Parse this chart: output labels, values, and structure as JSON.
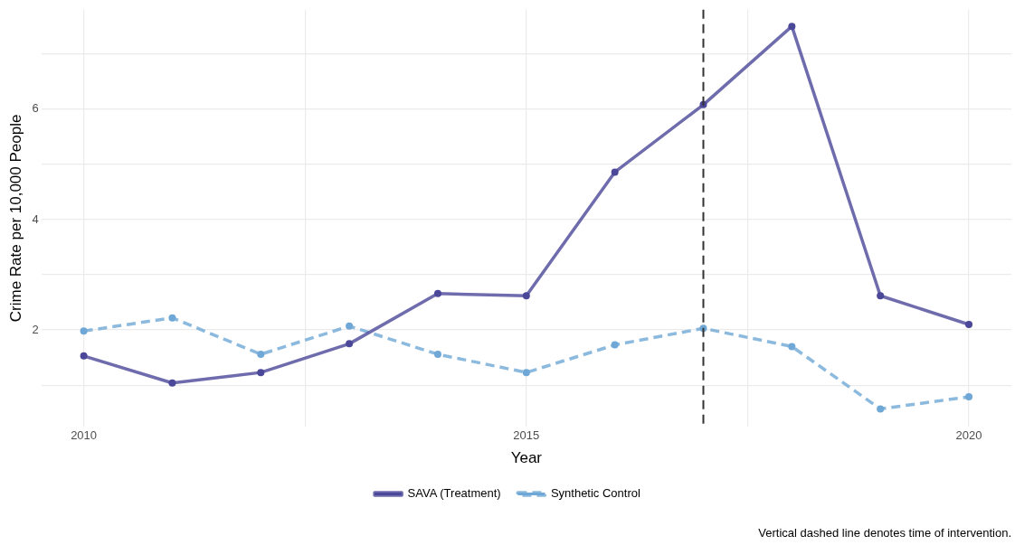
{
  "chart_data": {
    "type": "line",
    "xlabel": "Year",
    "ylabel": "Crime Rate per 10,000 People",
    "x": [
      2010,
      2011,
      2012,
      2013,
      2014,
      2015,
      2016,
      2017,
      2018,
      2019,
      2020
    ],
    "series": [
      {
        "name": "SAVA (Treatment)",
        "color": "#4b4799",
        "line_style": "solid",
        "values": [
          1.53,
          1.04,
          1.23,
          1.75,
          2.66,
          2.62,
          4.86,
          6.08,
          7.5,
          2.62,
          2.1
        ]
      },
      {
        "name": "Synthetic Control",
        "color": "#6fa8d6",
        "line_style": "dashed",
        "values": [
          1.98,
          2.22,
          1.56,
          2.07,
          1.56,
          1.23,
          1.73,
          2.03,
          1.7,
          0.57,
          0.79
        ]
      }
    ],
    "xlim": [
      2009.52,
      2020.48
    ],
    "ylim": [
      0.25,
      7.8
    ],
    "xticks": [
      2010,
      {
        "value": 2012.5,
        "label": null
      },
      2015,
      {
        "value": 2017.5,
        "label": null
      },
      2020
    ],
    "yticks": [
      {
        "value": 1,
        "label": null
      },
      2,
      {
        "value": 3,
        "label": null
      },
      4,
      {
        "value": 5,
        "label": null
      },
      6,
      {
        "value": 7,
        "label": null
      }
    ],
    "ref_lines": [
      {
        "axis": "x",
        "value": 2017,
        "color": "#333333",
        "line_style": "dashed"
      }
    ],
    "annotations": [
      "Vertical dashed line denotes time of intervention."
    ],
    "grid": true,
    "legend": "bottom",
    "marker": "circle"
  }
}
